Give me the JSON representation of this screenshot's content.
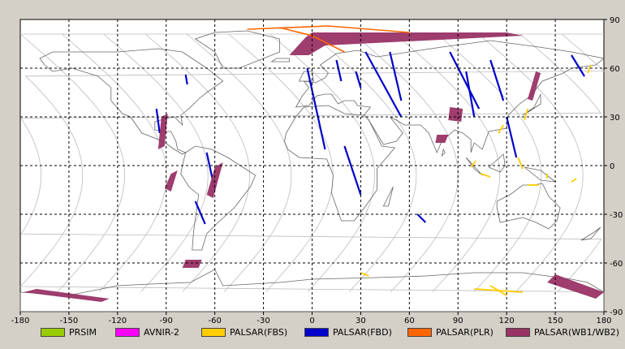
{
  "map": {
    "lon_ticks": [
      -180,
      -150,
      -120,
      -90,
      -60,
      -30,
      0,
      30,
      60,
      90,
      120,
      150,
      180
    ],
    "lat_ticks": [
      90,
      60,
      30,
      0,
      -30,
      -60,
      -90
    ],
    "lon_range": [
      -180,
      180
    ],
    "lat_range": [
      -90,
      90
    ],
    "grid": "dashed"
  },
  "legend": [
    {
      "id": "prism",
      "label": "PRSIM",
      "color": "#99cc00"
    },
    {
      "id": "avnir2",
      "label": "AVNIR-2",
      "color": "#ff00ff"
    },
    {
      "id": "palsar_fbs",
      "label": "PALSAR(FBS)",
      "color": "#ffcc00"
    },
    {
      "id": "palsar_fbd",
      "label": "PALSAR(FBD)",
      "color": "#0000cc"
    },
    {
      "id": "palsar_plr",
      "label": "PALSAR(PLR)",
      "color": "#ff6600"
    },
    {
      "id": "palsar_wb",
      "label": "PALSAR(WB1/WB2)",
      "color": "#993366"
    }
  ],
  "colors": {
    "background": "#d4d0c8",
    "map_bg": "#ffffff",
    "coastline": "#666666",
    "orbit_tracks": "#bbbbbb",
    "grid": "#000000"
  }
}
